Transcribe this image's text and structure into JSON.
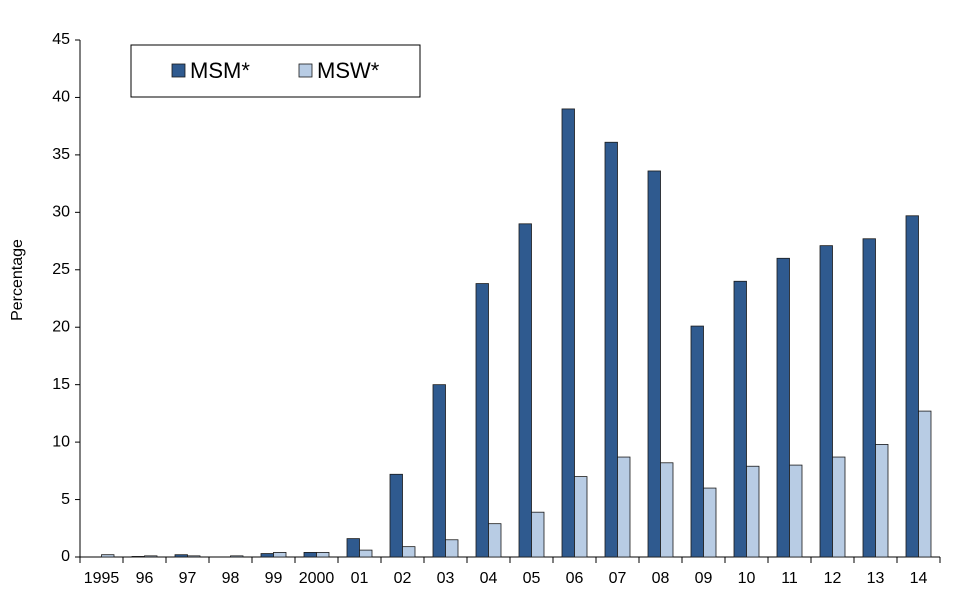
{
  "chart_data": {
    "type": "bar",
    "y_label": "Percentage",
    "categories": [
      "1995",
      "96",
      "97",
      "98",
      "99",
      "2000",
      "01",
      "02",
      "03",
      "04",
      "05",
      "06",
      "07",
      "08",
      "09",
      "10",
      "11",
      "12",
      "13",
      "14"
    ],
    "series": [
      {
        "name": "MSM*",
        "color": "#2f5a8f",
        "values": [
          0,
          0.05,
          0.2,
          0,
          0.3,
          0.4,
          1.6,
          7.2,
          15,
          23.8,
          29,
          39,
          36.1,
          33.6,
          20.1,
          24,
          26,
          27.1,
          27.7,
          29.7
        ]
      },
      {
        "name": "MSW*",
        "color": "#b8cce4",
        "values": [
          0.2,
          0.1,
          0.1,
          0.1,
          0.4,
          0.4,
          0.6,
          0.9,
          1.5,
          2.9,
          3.9,
          7,
          8.7,
          8.2,
          6,
          7.9,
          8,
          8.7,
          9.8,
          12.7
        ]
      }
    ],
    "ylim": [
      0,
      45
    ],
    "yticks": [
      0,
      5,
      10,
      15,
      20,
      25,
      30,
      35,
      40,
      45
    ],
    "grid": false
  }
}
